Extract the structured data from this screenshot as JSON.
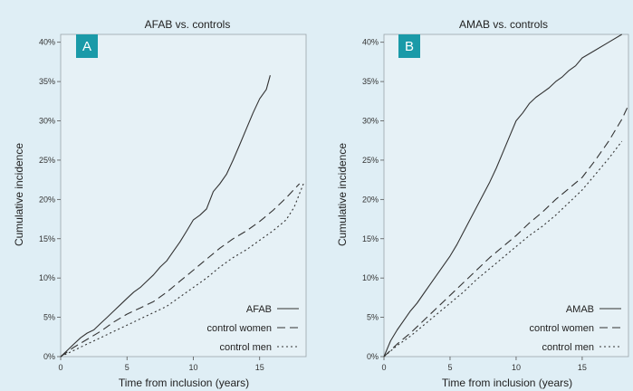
{
  "colors": {
    "background": "#dfeef5",
    "plot_background": "#e6f1f6",
    "line": "#333333",
    "badge": "#1a9aa8",
    "badge_text": "#ffffff"
  },
  "chart_data": [
    {
      "type": "line",
      "panel_label": "A",
      "title": "AFAB vs. controls",
      "xlabel": "Time from inclusion (years)",
      "ylabel": "Cumulative incidence",
      "xlim": [
        0,
        18.5
      ],
      "ylim": [
        0,
        41
      ],
      "xticks": [
        0,
        5,
        10,
        15
      ],
      "yticks": [
        0,
        5,
        10,
        15,
        20,
        25,
        30,
        35,
        40
      ],
      "ytick_labels": [
        "0%",
        "5%",
        "10%",
        "15%",
        "20%",
        "25%",
        "30%",
        "35%",
        "40%"
      ],
      "grid": false,
      "legend_position": "bottom-right",
      "series": [
        {
          "name": "AFAB",
          "style": "solid",
          "x": [
            0,
            0.5,
            1,
            1.5,
            2,
            2.5,
            3,
            3.5,
            4,
            4.5,
            5,
            5.5,
            6,
            6.5,
            7,
            7.5,
            8,
            8.5,
            9,
            9.5,
            10,
            10.5,
            11,
            11.5,
            12,
            12.5,
            13,
            13.5,
            14,
            14.5,
            15,
            15.5,
            15.8
          ],
          "y": [
            0,
            0.8,
            1.6,
            2.4,
            3.0,
            3.4,
            4.2,
            5.0,
            5.8,
            6.6,
            7.4,
            8.2,
            8.8,
            9.6,
            10.4,
            11.4,
            12.2,
            13.4,
            14.6,
            16.0,
            17.4,
            18.0,
            18.8,
            21.0,
            22.0,
            23.2,
            25.0,
            27.0,
            29.0,
            31.0,
            32.8,
            34.0,
            35.8
          ]
        },
        {
          "name": "control women",
          "style": "dashed",
          "x": [
            0,
            1,
            2,
            3,
            4,
            5,
            6,
            7,
            8,
            9,
            10,
            11,
            12,
            13,
            14,
            15,
            16,
            17,
            18
          ],
          "y": [
            0,
            1.2,
            2.2,
            3.2,
            4.4,
            5.4,
            6.2,
            7.0,
            8.2,
            9.6,
            11.0,
            12.4,
            13.8,
            15.0,
            16.0,
            17.2,
            18.6,
            20.2,
            22.0
          ]
        },
        {
          "name": "control men",
          "style": "dotted",
          "x": [
            0,
            1,
            2,
            3,
            4,
            5,
            6,
            7,
            8,
            9,
            10,
            11,
            12,
            13,
            14,
            15,
            16,
            17,
            17.6,
            18.3
          ],
          "y": [
            0,
            0.8,
            1.6,
            2.4,
            3.2,
            4.0,
            4.8,
            5.6,
            6.4,
            7.6,
            8.8,
            10.0,
            11.4,
            12.6,
            13.6,
            14.8,
            16.0,
            17.4,
            19.0,
            22.0
          ]
        }
      ]
    },
    {
      "type": "line",
      "panel_label": "B",
      "title": "AMAB vs. controls",
      "xlabel": "Time from inclusion (years)",
      "ylabel": "Cumulative incidence",
      "xlim": [
        0,
        18.5
      ],
      "ylim": [
        0,
        41
      ],
      "xticks": [
        0,
        5,
        10,
        15
      ],
      "yticks": [
        0,
        5,
        10,
        15,
        20,
        25,
        30,
        35,
        40
      ],
      "ytick_labels": [
        "0%",
        "5%",
        "10%",
        "15%",
        "20%",
        "25%",
        "30%",
        "35%",
        "40%"
      ],
      "grid": false,
      "legend_position": "bottom-right",
      "series": [
        {
          "name": "AMAB",
          "style": "solid",
          "x": [
            0,
            0.5,
            1,
            1.5,
            2,
            2.5,
            3,
            3.5,
            4,
            4.5,
            5,
            5.5,
            6,
            6.5,
            7,
            7.5,
            8,
            8.5,
            9,
            9.5,
            10,
            10.5,
            11,
            11.5,
            12,
            12.5,
            13,
            13.5,
            14,
            14.5,
            15,
            16,
            17,
            18
          ],
          "y": [
            0,
            2.0,
            3.4,
            4.6,
            5.8,
            6.8,
            8.0,
            9.2,
            10.4,
            11.6,
            12.8,
            14.2,
            15.8,
            17.4,
            19.0,
            20.6,
            22.2,
            24.0,
            26.0,
            28.0,
            30.0,
            31.0,
            32.2,
            33.0,
            33.6,
            34.2,
            35.0,
            35.6,
            36.4,
            37.0,
            38.0,
            39.0,
            40.0,
            41.0
          ]
        },
        {
          "name": "control women",
          "style": "dashed",
          "x": [
            0,
            1,
            2,
            3,
            4,
            5,
            6,
            7,
            8,
            9,
            10,
            11,
            12,
            13,
            14,
            15,
            16,
            17,
            18,
            18.5
          ],
          "y": [
            0,
            1.6,
            3.0,
            4.6,
            6.2,
            7.8,
            9.4,
            11.0,
            12.6,
            14.0,
            15.4,
            17.0,
            18.4,
            20.0,
            21.4,
            22.8,
            25.0,
            27.4,
            30.2,
            32.0
          ]
        },
        {
          "name": "control men",
          "style": "dotted",
          "x": [
            0,
            1,
            2,
            3,
            4,
            5,
            6,
            7,
            8,
            9,
            10,
            11,
            12,
            13,
            14,
            15,
            16,
            17,
            18
          ],
          "y": [
            0,
            1.4,
            2.6,
            4.0,
            5.4,
            6.8,
            8.2,
            9.8,
            11.2,
            12.6,
            14.0,
            15.4,
            16.6,
            18.0,
            19.6,
            21.2,
            23.2,
            25.2,
            27.4
          ]
        }
      ]
    }
  ]
}
